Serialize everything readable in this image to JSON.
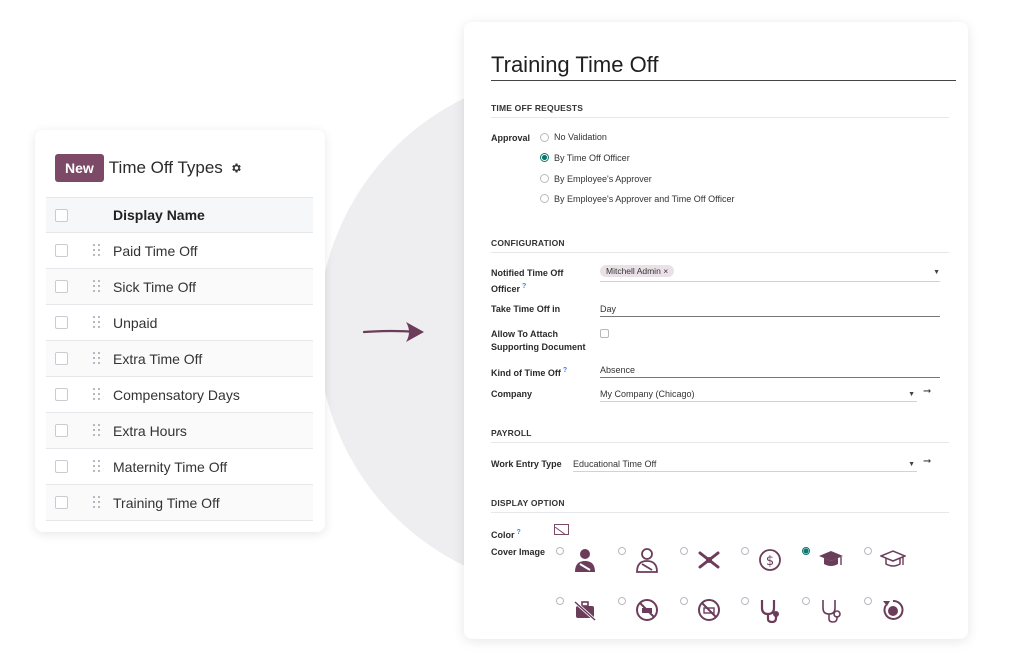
{
  "list": {
    "new_button": "New",
    "title": "Time Off Types",
    "column_header": "Display Name",
    "rows": [
      "Paid Time Off",
      "Sick Time Off",
      "Unpaid",
      "Extra Time Off",
      "Compensatory Days",
      "Extra Hours",
      "Maternity Time Off",
      "Training Time Off"
    ]
  },
  "form": {
    "title": "Training Time Off",
    "sections": {
      "requests": "TIME OFF REQUESTS",
      "configuration": "CONFIGURATION",
      "payroll": "PAYROLL",
      "display": "DISPLAY OPTION"
    },
    "approval": {
      "label": "Approval",
      "options": [
        "No Validation",
        "By Time Off Officer",
        "By Employee's Approver",
        "By Employee's Approver and Time Off Officer"
      ],
      "selected": "By Time Off Officer"
    },
    "notified_officer": {
      "label_line1": "Notified Time Off",
      "label_line2": "Officer",
      "help": "?",
      "tag": "Mitchell Admin",
      "tag_remove": "×"
    },
    "take_time_off_in": {
      "label": "Take Time Off in",
      "value": "Day"
    },
    "allow_attach": {
      "label_line1": "Allow To Attach",
      "label_line2": "Supporting Document",
      "checked": false
    },
    "kind": {
      "label": "Kind of Time Off",
      "help": "?",
      "value": "Absence"
    },
    "company": {
      "label": "Company",
      "value": "My Company (Chicago)"
    },
    "work_entry_type": {
      "label": "Work Entry Type",
      "value": "Educational Time Off"
    },
    "color": {
      "label": "Color",
      "help": "?"
    },
    "cover_image": {
      "label": "Cover Image",
      "icons": [
        "person-sling-icon",
        "person-sling-outline-icon",
        "tools-crossed-icon",
        "dollar-coin-icon",
        "graduation-cap-icon",
        "graduation-cap-outline-icon",
        "briefcase-slash-icon",
        "no-sign-icon",
        "no-sign-outline-icon",
        "stethoscope-icon",
        "stethoscope-outline-icon",
        "clock-refresh-icon"
      ],
      "selected": "graduation-cap-icon"
    }
  },
  "colors": {
    "brand": "#7c4a66",
    "selected_radio": "#0f766e",
    "icon": "#6b3d5a"
  }
}
